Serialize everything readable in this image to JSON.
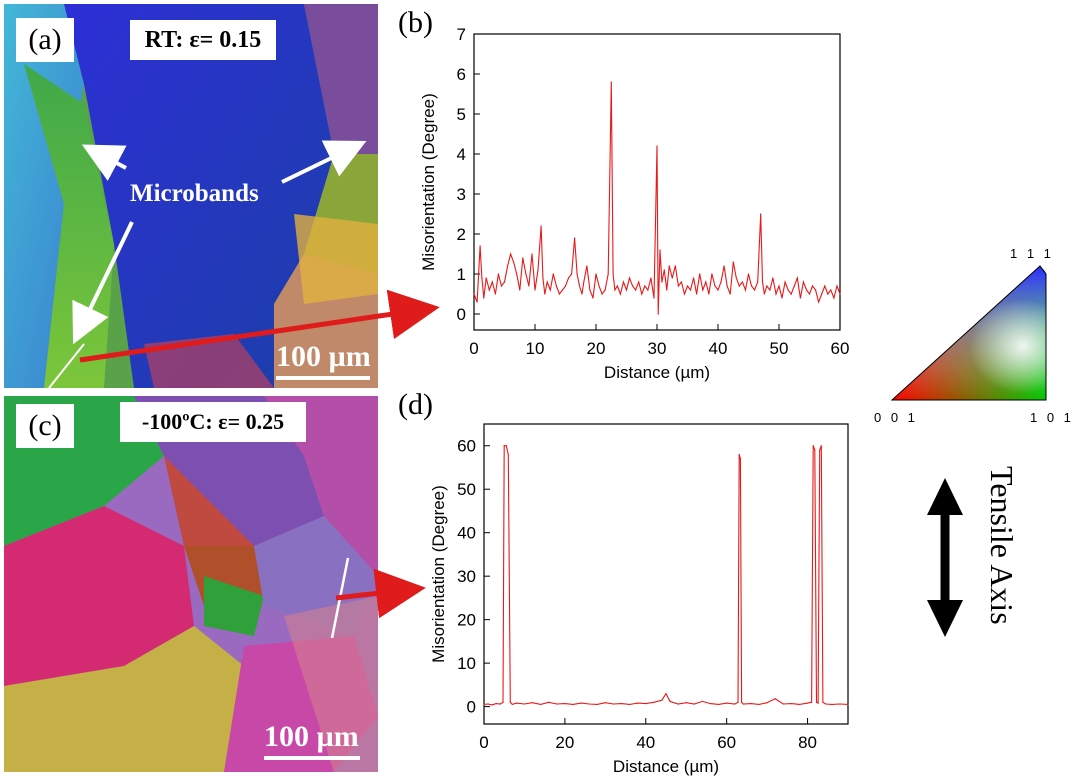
{
  "panel_a": {
    "letter": "(a)",
    "condition": "RT: ε= 0.15",
    "annotation": "Microbands",
    "scale_bar": "100 µm"
  },
  "panel_c": {
    "letter": "(c)",
    "condition": "-100ºC: ε= 0.25",
    "scale_bar": "100 µm"
  },
  "ipf_legend": {
    "top": "1 1 1",
    "bottom_left": "0 0 1",
    "bottom_right": "1 0 1"
  },
  "tensile_axis_label": "Tensile Axis",
  "colors": {
    "line": "#e8191a",
    "arrow_red": "#e01b1b",
    "white": "#ffffff"
  },
  "chart_data": [
    {
      "panel": "(b)",
      "type": "line",
      "xlabel": "Distance (µm)",
      "ylabel": "Misorientation (Degree)",
      "xlim": [
        0,
        60
      ],
      "ylim": [
        -0.4,
        7
      ],
      "xticks": [
        0,
        10,
        20,
        30,
        40,
        50,
        60
      ],
      "yticks": [
        0,
        1,
        2,
        3,
        4,
        5,
        6,
        7
      ],
      "x": [
        0,
        0.5,
        1,
        1.3,
        1.6,
        2,
        2.5,
        3,
        3.5,
        4,
        4.5,
        5,
        5.5,
        6,
        6.5,
        7,
        7.5,
        8,
        8.5,
        9,
        9.5,
        10,
        10.5,
        11,
        11.3,
        11.6,
        12,
        12.5,
        13,
        13.5,
        14,
        14.5,
        15,
        15.5,
        16,
        16.5,
        16.9,
        17.3,
        17.7,
        18,
        18.5,
        19,
        19.5,
        20,
        20.5,
        21,
        21.5,
        22,
        22.5,
        22.8,
        23.1,
        23.5,
        24,
        24.5,
        25,
        25.5,
        26,
        26.5,
        27,
        27.5,
        28,
        28.5,
        29,
        29.5,
        30,
        30.2,
        30.5,
        30.8,
        31.2,
        31.6,
        32,
        32.5,
        33,
        33.5,
        34,
        34.5,
        35,
        35.5,
        36,
        36.5,
        37,
        37.5,
        38,
        38.5,
        39,
        39.5,
        40,
        40.5,
        41,
        41.5,
        42,
        42.5,
        43,
        43.5,
        44,
        44.5,
        45,
        45.5,
        46,
        46.5,
        47,
        47.3,
        47.6,
        48,
        48.5,
        49,
        49.5,
        50,
        50.5,
        51,
        51.5,
        52,
        52.5,
        53,
        53.5,
        54,
        54.5,
        55,
        55.5,
        56,
        56.5,
        57,
        57.5,
        58,
        58.5,
        59,
        59.5,
        60
      ],
      "values": [
        0.5,
        0.3,
        1.7,
        0.9,
        0.4,
        0.9,
        0.6,
        0.8,
        0.5,
        1.0,
        0.7,
        0.8,
        1.2,
        1.5,
        1.3,
        1.0,
        0.6,
        1.4,
        1.0,
        0.7,
        1.5,
        0.6,
        1.1,
        2.2,
        0.9,
        0.5,
        0.8,
        0.6,
        1.0,
        0.7,
        0.5,
        0.6,
        0.7,
        0.9,
        1.0,
        1.9,
        1.0,
        0.7,
        0.5,
        0.8,
        1.2,
        0.6,
        0.4,
        1.0,
        0.7,
        0.5,
        0.6,
        1.0,
        5.8,
        1.0,
        0.6,
        0.7,
        0.5,
        0.8,
        0.6,
        0.9,
        0.7,
        0.6,
        0.8,
        0.5,
        0.7,
        0.6,
        0.9,
        0.4,
        4.2,
        0.0,
        1.6,
        0.8,
        1.1,
        0.6,
        1.2,
        0.9,
        1.2,
        0.7,
        0.8,
        0.5,
        0.7,
        0.6,
        0.9,
        0.5,
        1.0,
        0.6,
        0.8,
        0.5,
        1.0,
        0.7,
        0.6,
        0.8,
        1.2,
        0.7,
        0.5,
        1.3,
        0.9,
        0.7,
        0.8,
        0.6,
        1.0,
        0.7,
        0.6,
        0.8,
        2.5,
        0.8,
        0.5,
        0.7,
        0.6,
        0.9,
        0.5,
        0.7,
        0.4,
        0.8,
        0.6,
        0.5,
        0.7,
        0.9,
        0.4,
        0.8,
        0.6,
        0.5,
        0.7,
        0.6,
        0.3,
        0.5,
        0.7,
        0.5,
        0.6,
        0.4,
        0.7,
        0.5
      ]
    },
    {
      "panel": "(d)",
      "type": "line",
      "xlabel": "Distance (µm)",
      "ylabel": "Misorientation (Degree)",
      "xlim": [
        0,
        90
      ],
      "ylim": [
        -4,
        65
      ],
      "xticks": [
        0,
        20,
        40,
        60,
        80
      ],
      "yticks": [
        0,
        10,
        20,
        30,
        40,
        50,
        60
      ],
      "x": [
        0,
        1,
        2,
        3,
        4,
        4.7,
        5,
        5.5,
        6,
        6.5,
        7,
        8,
        10,
        12,
        14,
        16,
        18,
        20,
        22,
        24,
        26,
        28,
        30,
        32,
        34,
        36,
        38,
        40,
        42,
        44,
        45,
        46,
        48,
        50,
        52,
        54,
        56,
        58,
        60,
        62,
        62.8,
        63.1,
        63.4,
        63.7,
        64.1,
        66,
        68,
        70,
        72,
        74,
        76,
        78,
        80,
        81,
        81.4,
        81.8,
        82.2,
        82.6,
        83,
        83.4,
        83.8,
        84.5,
        86,
        88,
        90
      ],
      "values": [
        0.5,
        0.6,
        0.4,
        0.7,
        0.6,
        1.0,
        60,
        60,
        58,
        1.0,
        0.5,
        0.8,
        0.6,
        0.9,
        0.5,
        1.0,
        0.6,
        0.7,
        0.5,
        0.8,
        0.6,
        0.5,
        0.9,
        0.6,
        0.7,
        0.5,
        0.8,
        0.7,
        1.0,
        1.5,
        3.0,
        1.2,
        0.6,
        0.9,
        0.6,
        1.2,
        0.7,
        0.5,
        0.8,
        0.6,
        1.0,
        58,
        57,
        1.0,
        0.6,
        0.7,
        0.5,
        0.9,
        1.8,
        0.6,
        0.7,
        0.5,
        0.8,
        1.0,
        60,
        59,
        1.0,
        0.8,
        59,
        60,
        1.0,
        0.6,
        0.5,
        0.6,
        0.5
      ]
    }
  ]
}
